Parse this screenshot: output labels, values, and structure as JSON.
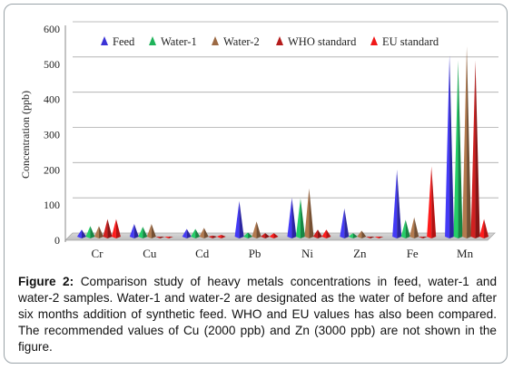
{
  "chart_data": {
    "type": "bar",
    "ylabel": "Concentration (ppb)",
    "ylim": [
      0,
      600
    ],
    "yticks": [
      0,
      100,
      200,
      300,
      400,
      500,
      600
    ],
    "categories": [
      "Cr",
      "Cu",
      "Cd",
      "Pb",
      "Ni",
      "Zn",
      "Fe",
      "Mn"
    ],
    "legend_position": "top",
    "series": [
      {
        "name": "Feed",
        "color": "#3b33d6",
        "values": [
          20,
          36,
          22,
          101,
          110,
          80,
          190,
          515
        ]
      },
      {
        "name": "Water-1",
        "color": "#1fb35a",
        "values": [
          30,
          28,
          22,
          12,
          108,
          10,
          48,
          500
        ]
      },
      {
        "name": "Water-2",
        "color": "#9c6a44",
        "values": [
          30,
          36,
          25,
          43,
          137,
          17,
          55,
          540
        ]
      },
      {
        "name": "WHO standard",
        "color": "#b51c1c",
        "values": [
          50,
          0,
          3,
          10,
          20,
          0,
          0,
          500
        ]
      },
      {
        "name": "EU standard",
        "color": "#f01818",
        "values": [
          50,
          0,
          5,
          10,
          20,
          0,
          200,
          50
        ]
      }
    ]
  },
  "caption": {
    "label": "Figure 2:",
    "text": "Comparison study of heavy metals concentrations in feed, water-1 and water-2 samples. Water-1 and water-2 are designated as the water of before and after six months addition of synthetic feed. WHO and EU values has also been compared. The recommended values of Cu (2000 ppb) and Zn (3000 ppb) are not shown in the figure."
  }
}
